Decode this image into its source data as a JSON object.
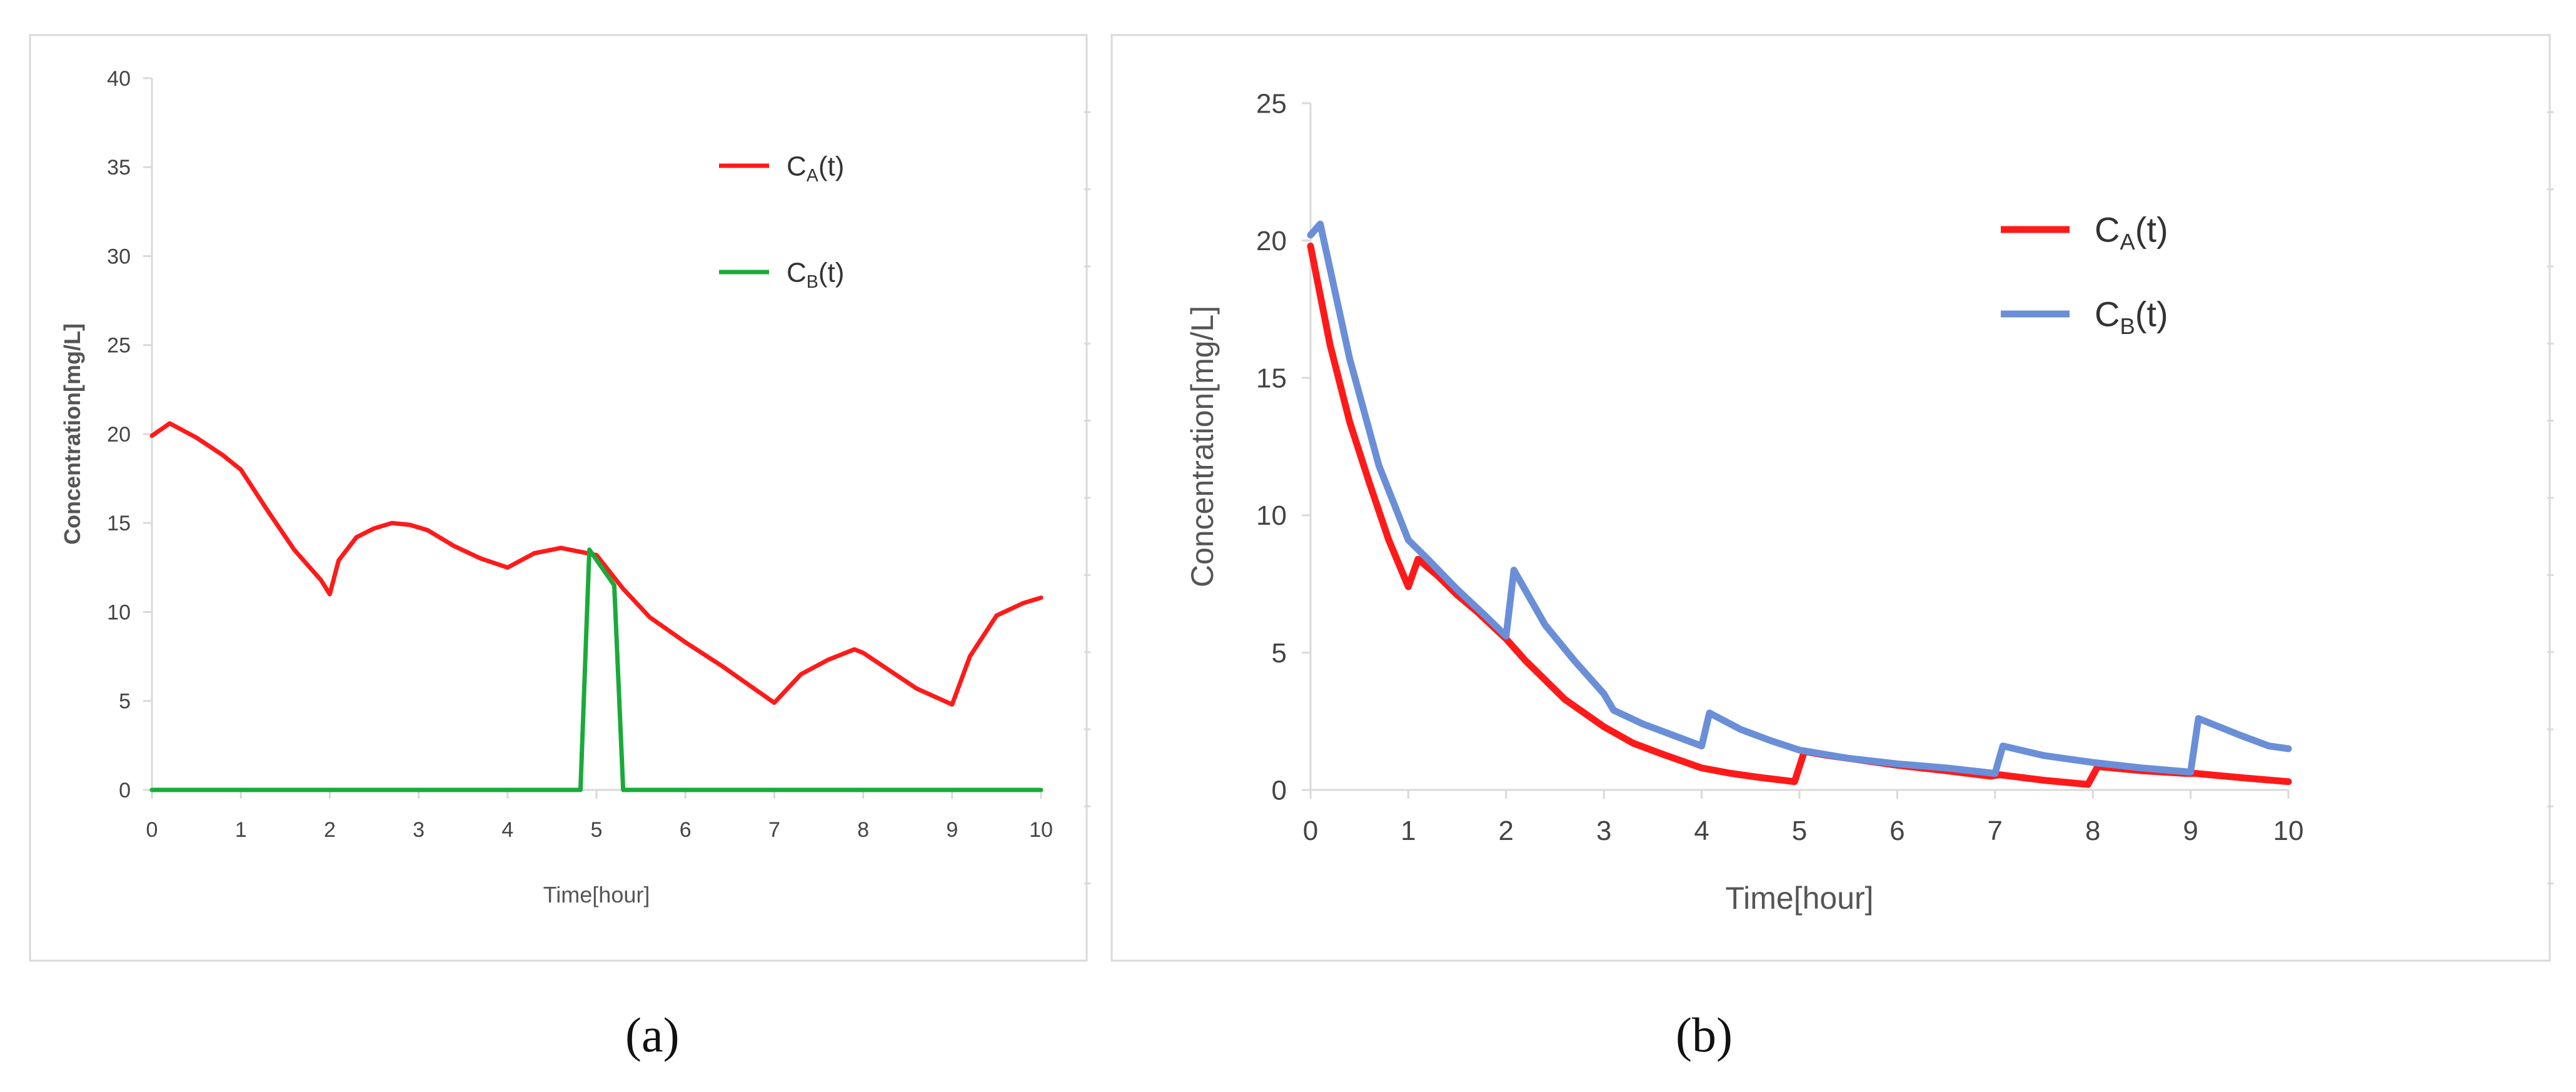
{
  "captions": [
    "(a)",
    "(b)"
  ],
  "chart_data": [
    {
      "type": "line",
      "title": "",
      "xlabel": "Time[hour]",
      "ylabel": "Concentration[mg/L]",
      "xlim": [
        0,
        10
      ],
      "ylim": [
        0,
        40
      ],
      "xticks": [
        "0",
        "1",
        "2",
        "3",
        "4",
        "5",
        "6",
        "7",
        "8",
        "9",
        "10"
      ],
      "yticks": [
        "0",
        "5",
        "10",
        "15",
        "20",
        "25",
        "30",
        "35",
        "40"
      ],
      "grid": false,
      "legend_position": "top-right",
      "series": [
        {
          "name": "C_A(t)",
          "legend_main": "C",
          "legend_sub": "A",
          "legend_tail": "(t)",
          "color": "#ff1a1a",
          "x": [
            0,
            0.2,
            0.5,
            0.8,
            1.0,
            1.3,
            1.6,
            1.9,
            2.0,
            2.1,
            2.3,
            2.5,
            2.7,
            2.9,
            3.1,
            3.4,
            3.7,
            4.0,
            4.3,
            4.6,
            4.8,
            5.0,
            5.3,
            5.6,
            6.0,
            6.4,
            6.8,
            7.0,
            7.3,
            7.6,
            7.9,
            8.0,
            8.3,
            8.6,
            9.0,
            9.2,
            9.5,
            9.8,
            10.0
          ],
          "y": [
            19.9,
            20.6,
            19.8,
            18.8,
            18.0,
            15.7,
            13.5,
            11.8,
            11.0,
            12.9,
            14.2,
            14.7,
            15.0,
            14.9,
            14.6,
            13.7,
            13.0,
            12.5,
            13.3,
            13.6,
            13.4,
            13.2,
            11.3,
            9.7,
            8.3,
            7.0,
            5.6,
            4.9,
            6.5,
            7.3,
            7.9,
            7.7,
            6.7,
            5.7,
            4.8,
            7.5,
            9.8,
            10.5,
            10.8
          ]
        },
        {
          "name": "C_B(t)",
          "legend_main": "C",
          "legend_sub": "B",
          "legend_tail": "(t)",
          "color": "#1aaa3a",
          "x": [
            0,
            4.82,
            4.92,
            5.2,
            5.3,
            10.0
          ],
          "y": [
            0,
            0,
            13.5,
            11.5,
            0,
            0
          ]
        }
      ]
    },
    {
      "type": "line",
      "title": "",
      "xlabel": "Time[hour]",
      "ylabel": "Concentration[mg/L]",
      "xlim": [
        0,
        10
      ],
      "ylim": [
        0,
        25
      ],
      "xticks": [
        "0",
        "1",
        "2",
        "3",
        "4",
        "5",
        "6",
        "7",
        "8",
        "9",
        "10"
      ],
      "yticks": [
        "0",
        "5",
        "10",
        "15",
        "20",
        "25"
      ],
      "grid": false,
      "legend_position": "top-right",
      "series": [
        {
          "name": "C_A(t)",
          "legend_main": "C",
          "legend_sub": "A",
          "legend_tail": "(t)",
          "color": "#ff1a1a",
          "x": [
            0,
            0.2,
            0.4,
            0.6,
            0.8,
            1.0,
            1.1,
            1.3,
            1.5,
            1.7,
            2.0,
            2.2,
            2.4,
            2.6,
            2.8,
            3.0,
            3.3,
            3.6,
            4.0,
            4.3,
            4.6,
            4.95,
            5.05,
            5.3,
            5.6,
            6.0,
            6.5,
            6.95,
            7.05,
            7.5,
            7.95,
            8.05,
            8.5,
            8.95,
            9.05,
            9.5,
            10.0
          ],
          "y": [
            19.8,
            16.2,
            13.4,
            11.2,
            9.1,
            7.4,
            8.4,
            7.8,
            7.1,
            6.5,
            5.5,
            4.7,
            4.0,
            3.3,
            2.8,
            2.3,
            1.7,
            1.3,
            0.8,
            0.6,
            0.45,
            0.3,
            1.4,
            1.25,
            1.1,
            0.9,
            0.7,
            0.5,
            0.55,
            0.35,
            0.2,
            0.85,
            0.7,
            0.6,
            0.6,
            0.45,
            0.3
          ]
        },
        {
          "name": "C_B(t)",
          "legend_main": "C",
          "legend_sub": "B",
          "legend_tail": "(t)",
          "color": "#6a8fd8",
          "x": [
            0,
            0.1,
            0.4,
            0.7,
            1.0,
            1.2,
            1.5,
            1.8,
            2.0,
            2.08,
            2.4,
            2.7,
            3.0,
            3.1,
            3.4,
            3.7,
            4.0,
            4.08,
            4.4,
            4.7,
            5.0,
            5.5,
            6.0,
            6.5,
            7.0,
            7.08,
            7.5,
            8.0,
            8.5,
            9.0,
            9.08,
            9.5,
            9.8,
            10.0
          ],
          "y": [
            20.2,
            20.6,
            15.7,
            11.8,
            9.1,
            8.4,
            7.3,
            6.3,
            5.6,
            8.0,
            6.0,
            4.7,
            3.5,
            2.9,
            2.4,
            2.0,
            1.6,
            2.8,
            2.2,
            1.8,
            1.45,
            1.15,
            0.95,
            0.8,
            0.6,
            1.6,
            1.25,
            1.0,
            0.8,
            0.65,
            2.6,
            2.0,
            1.6,
            1.5
          ]
        }
      ]
    }
  ]
}
